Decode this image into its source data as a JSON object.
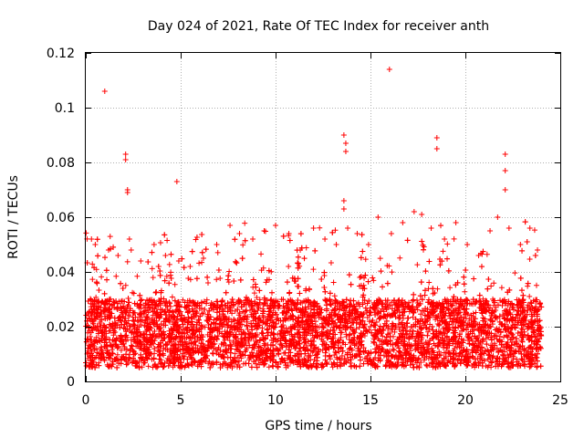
{
  "chart_data": {
    "type": "scatter",
    "title": "Day 024 of 2021, Rate Of TEC Index for receiver anth",
    "xlabel": "GPS time / hours",
    "ylabel": "ROTI / TECUs",
    "xlim": [
      0,
      25
    ],
    "ylim": [
      0,
      0.12
    ],
    "xticks": [
      0,
      5,
      10,
      15,
      20,
      25
    ],
    "xtick_labels": [
      "0",
      "5",
      "10",
      "15",
      "20",
      "25"
    ],
    "yticks": [
      0,
      0.02,
      0.04,
      0.06,
      0.08,
      0.1,
      0.12
    ],
    "ytick_labels": [
      "0",
      "0.02",
      "0.04",
      "0.06",
      "0.08",
      "0.1",
      "0.12"
    ],
    "grid": true,
    "marker": "+",
    "color": "#ff0000",
    "series": [
      {
        "name": "ROTI",
        "points": [
          [
            1.0,
            0.106
          ],
          [
            2.1,
            0.083
          ],
          [
            2.1,
            0.081
          ],
          [
            2.2,
            0.07
          ],
          [
            2.2,
            0.069
          ],
          [
            4.8,
            0.073
          ],
          [
            13.6,
            0.09
          ],
          [
            13.7,
            0.087
          ],
          [
            13.7,
            0.084
          ],
          [
            13.6,
            0.066
          ],
          [
            13.6,
            0.063
          ],
          [
            16.0,
            0.114
          ],
          [
            18.5,
            0.089
          ],
          [
            18.5,
            0.085
          ],
          [
            22.1,
            0.083
          ],
          [
            22.1,
            0.077
          ],
          [
            22.1,
            0.07
          ],
          [
            0.3,
            0.052
          ],
          [
            0.5,
            0.05
          ],
          [
            1.2,
            0.048
          ],
          [
            1.7,
            0.046
          ],
          [
            2.3,
            0.052
          ],
          [
            2.9,
            0.044
          ],
          [
            3.6,
            0.05
          ],
          [
            4.2,
            0.046
          ],
          [
            4.9,
            0.044
          ],
          [
            5.5,
            0.042
          ],
          [
            6.2,
            0.045
          ],
          [
            6.9,
            0.05
          ],
          [
            7.6,
            0.057
          ],
          [
            8.1,
            0.054
          ],
          [
            8.8,
            0.052
          ],
          [
            9.4,
            0.055
          ],
          [
            10.0,
            0.057
          ],
          [
            10.7,
            0.054
          ],
          [
            11.3,
            0.048
          ],
          [
            12.0,
            0.056
          ],
          [
            12.6,
            0.052
          ],
          [
            13.2,
            0.05
          ],
          [
            13.8,
            0.056
          ],
          [
            14.3,
            0.054
          ],
          [
            14.9,
            0.05
          ],
          [
            15.4,
            0.06
          ],
          [
            16.1,
            0.054
          ],
          [
            16.7,
            0.058
          ],
          [
            17.3,
            0.062
          ],
          [
            17.7,
            0.061
          ],
          [
            18.2,
            0.056
          ],
          [
            18.9,
            0.052
          ],
          [
            19.5,
            0.058
          ],
          [
            20.1,
            0.05
          ],
          [
            20.7,
            0.046
          ],
          [
            21.3,
            0.055
          ],
          [
            21.7,
            0.06
          ],
          [
            22.3,
            0.056
          ],
          [
            22.9,
            0.05
          ],
          [
            23.4,
            0.056
          ],
          [
            23.8,
            0.048
          ]
        ],
        "bulk": {
          "description": "dense band of several thousand ROTI samples across the day",
          "x_range": [
            0,
            24
          ],
          "typical_range": [
            0.005,
            0.03
          ],
          "bursts_up_to": 0.06
        }
      }
    ]
  }
}
